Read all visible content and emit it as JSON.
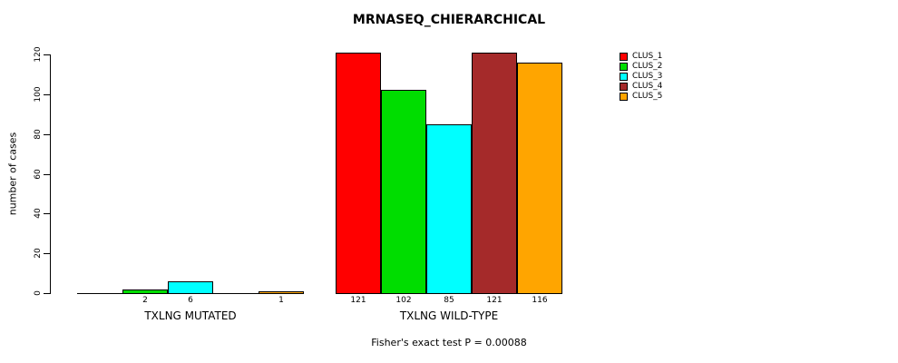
{
  "title": "MRNASEQ_CHIERARCHICAL",
  "ylabel": "number of cases",
  "footer": "Fisher's exact test P = 0.00088",
  "chart_data": {
    "type": "bar",
    "title": "MRNASEQ_CHIERARCHICAL",
    "ylabel": "number of cases",
    "xlabel": "",
    "annotation": "Fisher's exact test P = 0.00088",
    "ylim": [
      0,
      121
    ],
    "yticks": [
      0,
      20,
      40,
      60,
      80,
      100,
      120
    ],
    "grid": false,
    "legend_position": "right",
    "series_names": [
      "CLUS_1",
      "CLUS_2",
      "CLUS_3",
      "CLUS_4",
      "CLUS_5"
    ],
    "colors": [
      "#ff0000",
      "#00dd00",
      "#00ffff",
      "#a52a2a",
      "#ffa500"
    ],
    "groups": [
      {
        "label": "TXLNG MUTATED",
        "values": [
          0,
          2,
          6,
          0,
          1
        ]
      },
      {
        "label": "TXLNG WILD-TYPE",
        "values": [
          121,
          102,
          85,
          121,
          116
        ]
      }
    ]
  }
}
